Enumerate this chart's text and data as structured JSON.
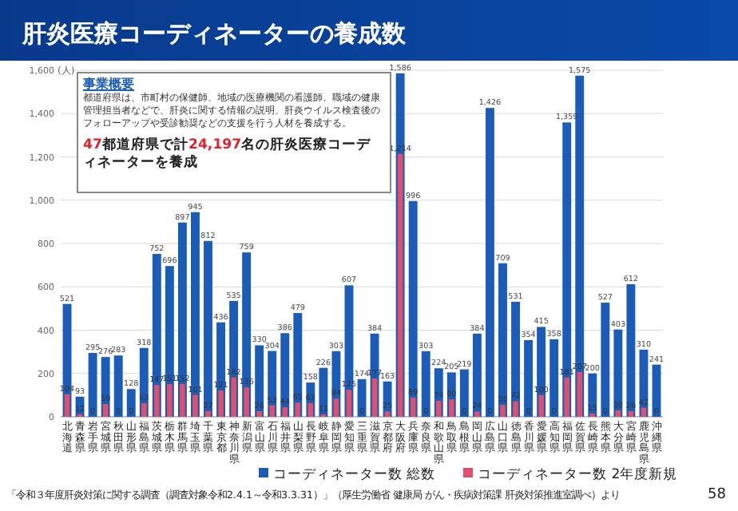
{
  "chart_data": {
    "type": "bar",
    "title": "肝炎医療コーディネーターの養成数",
    "ylabel": "(人)",
    "categories": [
      "北海道",
      "青森県",
      "岩手県",
      "宮城県",
      "秋田県",
      "山形県",
      "福島県",
      "茨城県",
      "栃木県",
      "群馬県",
      "埼玉県",
      "千葉県",
      "東京都",
      "神奈川県",
      "新潟県",
      "富山県",
      "石川県",
      "福井県",
      "山梨県",
      "長野県",
      "岐阜県",
      "静岡県",
      "愛知県",
      "三重県",
      "滋賀県",
      "京都府",
      "大阪府",
      "兵庫県",
      "奈良県",
      "和歌山県",
      "鳥取県",
      "島根県",
      "岡山県",
      "広島県",
      "山口県",
      "徳島県",
      "香川県",
      "愛媛県",
      "高知県",
      "福岡県",
      "佐賀県",
      "長崎県",
      "熊本県",
      "大分県",
      "宮崎県",
      "鹿児島県",
      "沖縄県"
    ],
    "series": [
      {
        "name": "コーディネーター数 総数",
        "color": "#1a5cb8",
        "values": [
          521,
          93,
          295,
          276,
          283,
          128,
          318,
          752,
          696,
          897,
          945,
          812,
          436,
          535,
          759,
          330,
          304,
          386,
          479,
          158,
          226,
          303,
          607,
          174,
          384,
          163,
          1586,
          996,
          303,
          224,
          205,
          219,
          384,
          1426,
          709,
          531,
          354,
          415,
          358,
          1359,
          1575,
          200,
          527,
          403,
          612,
          310,
          241
        ],
        "value_labels": [
          "521",
          "93",
          "295",
          "276",
          "283",
          "128",
          "318",
          "752",
          "696",
          "897",
          "945",
          "812",
          "436",
          "535",
          "759",
          "330",
          "304",
          "386",
          "479",
          "158",
          "226",
          "303",
          "607",
          "174",
          "384",
          "163",
          "1,586",
          "996",
          "303",
          "224",
          "205",
          "219",
          "384",
          "1,426",
          "709",
          "531",
          "354",
          "415",
          "358",
          "1,359",
          "1,575",
          "200",
          "527",
          "403",
          "612",
          "310",
          "241"
        ]
      },
      {
        "name": "コーディネーター数 2年度新規",
        "color": "#e0506e",
        "values": [
          104,
          12,
          0,
          59,
          0,
          0,
          63,
          147,
          151,
          152,
          101,
          27,
          121,
          182,
          136,
          26,
          53,
          44,
          65,
          63,
          11,
          84,
          125,
          0,
          177,
          25,
          1214,
          89,
          0,
          74,
          80,
          0,
          24,
          0,
          55,
          72,
          0,
          100,
          0,
          181,
          207,
          15,
          0,
          30,
          26,
          42,
          0
        ],
        "value_labels": [
          "104",
          "12",
          "0",
          "59",
          "0",
          "0",
          "63",
          "147",
          "151",
          "152",
          "101",
          "27",
          "121",
          "182",
          "136",
          "26",
          "53",
          "44",
          "65",
          "63",
          "11",
          "84",
          "125",
          "0",
          "177",
          "25",
          "1,214",
          "89",
          "0",
          "74",
          "80",
          "0",
          "24",
          "0",
          "55",
          "72",
          "0",
          "100",
          "0",
          "181",
          "207",
          "15",
          "0",
          "30",
          "26",
          "42",
          "0"
        ]
      }
    ],
    "ylim": [
      0,
      1600
    ],
    "yticks": [
      0,
      200,
      400,
      600,
      800,
      {
        "value": 1000,
        "label": "1,000"
      },
      {
        "value": 1200,
        "label": "1,200"
      },
      {
        "value": 1400,
        "label": "1,400"
      },
      {
        "value": 1600,
        "label": "1,600"
      }
    ],
    "grid": "y",
    "legend": "bottom",
    "annotations": [
      "事業概要",
      "都道府県は、市町村の保健師、地域の医療機関の看護師、職域の健康管理担当者などで、肝炎に関する情報の説明、肝炎ウイルス検査後のフォローアップや受診勧奨などの支援を行う人材を養成する。",
      "47都道府県で計24,197名の肝炎医療コーディネーターを養成",
      "「令和３年度肝炎対策に関する調査（調査対象令和2.4.1～令和3.3.31）」（厚生労働省 健康局 がん・疾病対策課 肝炎対策推進室調べ）より",
      "58"
    ]
  }
}
